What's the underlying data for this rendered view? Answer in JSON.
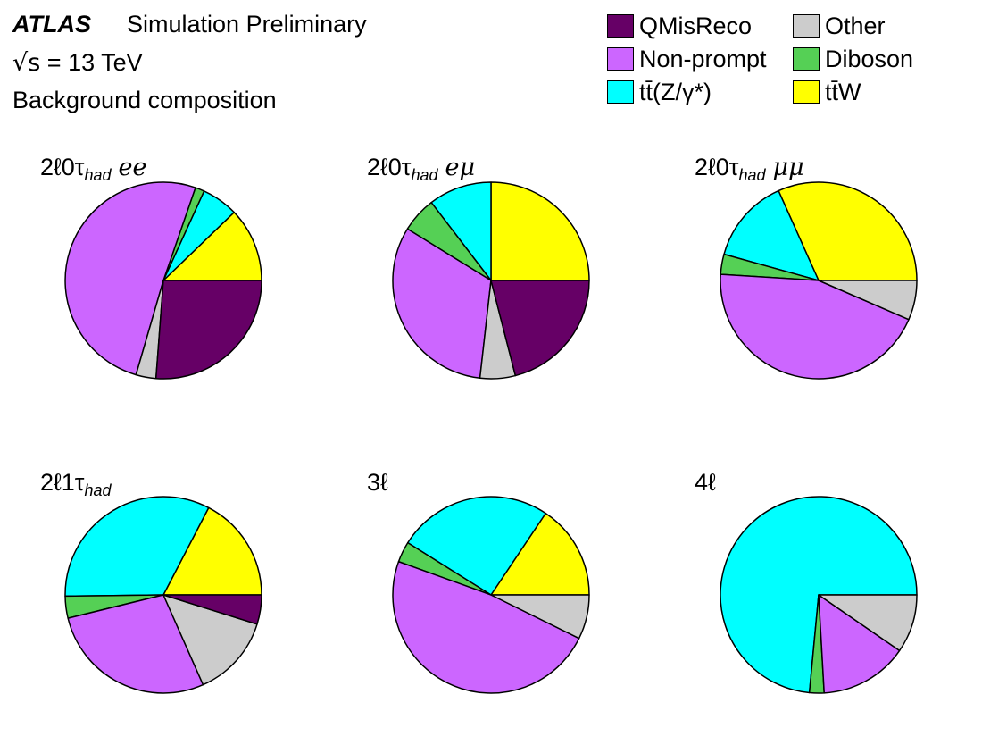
{
  "header": {
    "atlas": "ATLAS",
    "simulation": "Simulation Preliminary",
    "energy_symbol": "√s",
    "energy": "= 13 TeV",
    "subtitle": "Background composition"
  },
  "legend": [
    {
      "key": "QMisReco",
      "label": "QMisReco",
      "color": "#660066"
    },
    {
      "key": "Other",
      "label": "Other",
      "color": "#cccccc"
    },
    {
      "key": "Non-prompt",
      "label": "Non-prompt",
      "color": "#cc66ff"
    },
    {
      "key": "Diboson",
      "label": "Diboson",
      "color": "#55d055"
    },
    {
      "key": "ttZ",
      "label": "tt̄(Z/γ*)",
      "color": "#00ffff"
    },
    {
      "key": "ttW",
      "label": "tt̄W",
      "color": "#ffff00"
    }
  ],
  "chart_data": [
    {
      "type": "pie",
      "title_main": "2ℓ0τ",
      "title_sub": "had",
      "title_suffix": "ee",
      "labels": [
        "ttW",
        "ttZ",
        "Diboson",
        "Non-prompt",
        "Other",
        "QMisReco"
      ],
      "values": [
        12.2,
        6.0,
        1.5,
        50.8,
        3.3,
        26.2
      ]
    },
    {
      "type": "pie",
      "title_main": "2ℓ0τ",
      "title_sub": "had",
      "title_suffix": "eμ",
      "labels": [
        "ttW",
        "ttZ",
        "Diboson",
        "Non-prompt",
        "Other",
        "QMisReco"
      ],
      "values": [
        25.0,
        10.4,
        5.8,
        32.0,
        5.8,
        21.0
      ]
    },
    {
      "type": "pie",
      "title_main": "2ℓ0τ",
      "title_sub": "had",
      "title_suffix": "μμ",
      "labels": [
        "ttW",
        "ttZ",
        "Diboson",
        "Non-prompt",
        "Other"
      ],
      "values": [
        31.7,
        14.0,
        3.3,
        44.5,
        6.5
      ]
    },
    {
      "type": "pie",
      "title_main": "2ℓ1τ",
      "title_sub": "had",
      "title_suffix": "",
      "labels": [
        "ttW",
        "ttZ",
        "Diboson",
        "Non-prompt",
        "Other",
        "QMisReco"
      ],
      "values": [
        17.3,
        32.7,
        3.6,
        27.7,
        13.5,
        4.8
      ]
    },
    {
      "type": "pie",
      "title_main": "3ℓ",
      "title_sub": "",
      "title_suffix": "",
      "labels": [
        "ttW",
        "ttZ",
        "Diboson",
        "Non-prompt",
        "Other"
      ],
      "values": [
        15.6,
        25.5,
        3.4,
        48.2,
        7.3
      ]
    },
    {
      "type": "pie",
      "title_main": "4ℓ",
      "title_sub": "",
      "title_suffix": "",
      "labels": [
        "ttZ",
        "Diboson",
        "Non-prompt",
        "Other"
      ],
      "values": [
        73.5,
        2.4,
        14.5,
        9.6
      ]
    }
  ]
}
